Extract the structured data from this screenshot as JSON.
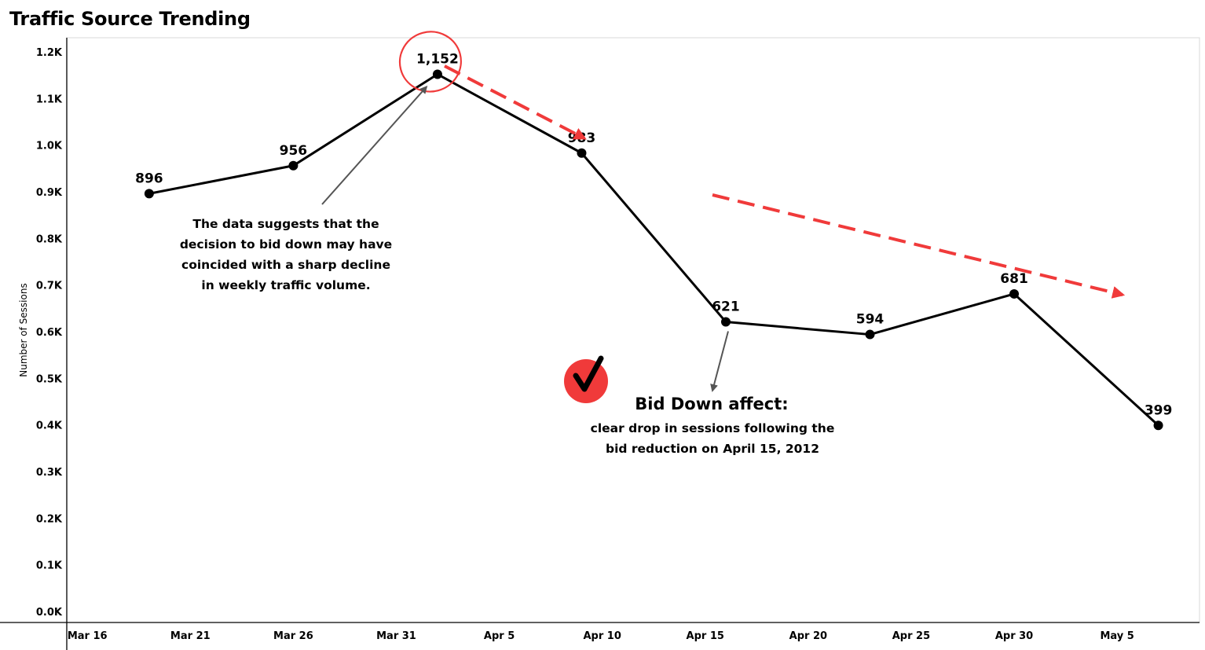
{
  "chart_data": {
    "type": "line",
    "title": "Traffic Source Trending",
    "ylabel": "Number of Sessions",
    "xlabel": "",
    "x": [
      "2012-03-19",
      "2012-03-26",
      "2012-04-02",
      "2012-04-09",
      "2012-04-16",
      "2012-04-23",
      "2012-04-30",
      "2012-05-07"
    ],
    "series": [
      {
        "values": [
          896,
          956,
          1152,
          983,
          621,
          594,
          681,
          399
        ]
      }
    ],
    "data_labels": [
      "896",
      "956",
      "1,152",
      "983",
      "621",
      "594",
      "681",
      "399"
    ],
    "ylim": [
      0,
      1200
    ],
    "y_ticks": [
      0,
      100,
      200,
      300,
      400,
      500,
      600,
      700,
      800,
      900,
      1000,
      1100,
      1200
    ],
    "y_tick_labels": [
      "0.0K",
      "0.1K",
      "0.2K",
      "0.3K",
      "0.4K",
      "0.5K",
      "0.6K",
      "0.7K",
      "0.8K",
      "0.9K",
      "1.0K",
      "1.1K",
      "1.2K"
    ],
    "xlim": [
      "2012-03-15",
      "2012-05-09"
    ],
    "x_ticks": [
      "2012-03-16",
      "2012-03-21",
      "2012-03-26",
      "2012-03-31",
      "2012-04-05",
      "2012-04-10",
      "2012-04-15",
      "2012-04-20",
      "2012-04-25",
      "2012-04-30",
      "2012-05-05"
    ],
    "x_tick_labels": [
      "Mar 16",
      "Mar 21",
      "Mar 26",
      "Mar 31",
      "Apr 5",
      "Apr 10",
      "Apr 15",
      "Apr 20",
      "Apr 25",
      "Apr 30",
      "May 5"
    ],
    "grid": false,
    "line_color": "#000000",
    "accent_color": "#f03a3a",
    "pointer_color": "#555555",
    "annotations": {
      "note_left": [
        "The data suggests that the",
        "decision to bid down may have",
        "coincided with a sharp decline",
        "in weekly traffic volume."
      ],
      "note_right_title": "Bid Down affect:",
      "note_right": [
        "clear drop in sessions following the",
        "bid reduction on April 15, 2012"
      ],
      "check_icon": "checkmark-icon"
    }
  }
}
